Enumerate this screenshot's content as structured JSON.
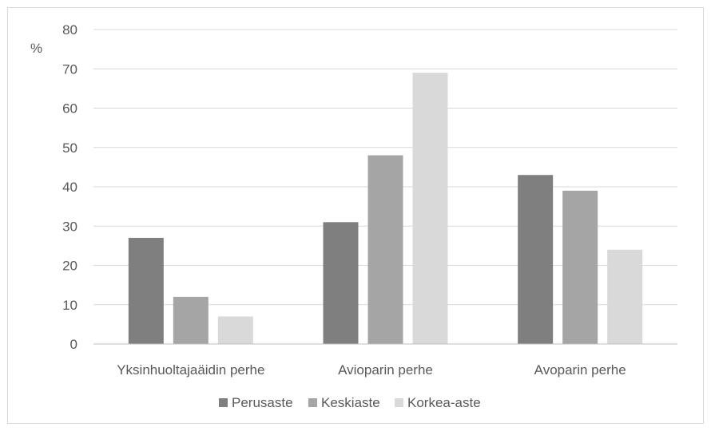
{
  "chart_data": {
    "type": "bar",
    "ylabel": "%",
    "ylim": [
      0,
      80
    ],
    "yticks": [
      0,
      10,
      20,
      30,
      40,
      50,
      60,
      70,
      80
    ],
    "grid": true,
    "legend_position": "bottom",
    "categories": [
      "Yksinhuoltajaäidin perhe",
      "Avioparin perhe",
      "Avoparin perhe"
    ],
    "series": [
      {
        "name": "Perusaste",
        "color": "#7f7f7f",
        "values": [
          27,
          31,
          43
        ]
      },
      {
        "name": "Keskiaste",
        "color": "#a5a5a5",
        "values": [
          12,
          48,
          39
        ]
      },
      {
        "name": "Korkea-aste",
        "color": "#d9d9d9",
        "values": [
          7,
          69,
          24
        ]
      }
    ]
  }
}
